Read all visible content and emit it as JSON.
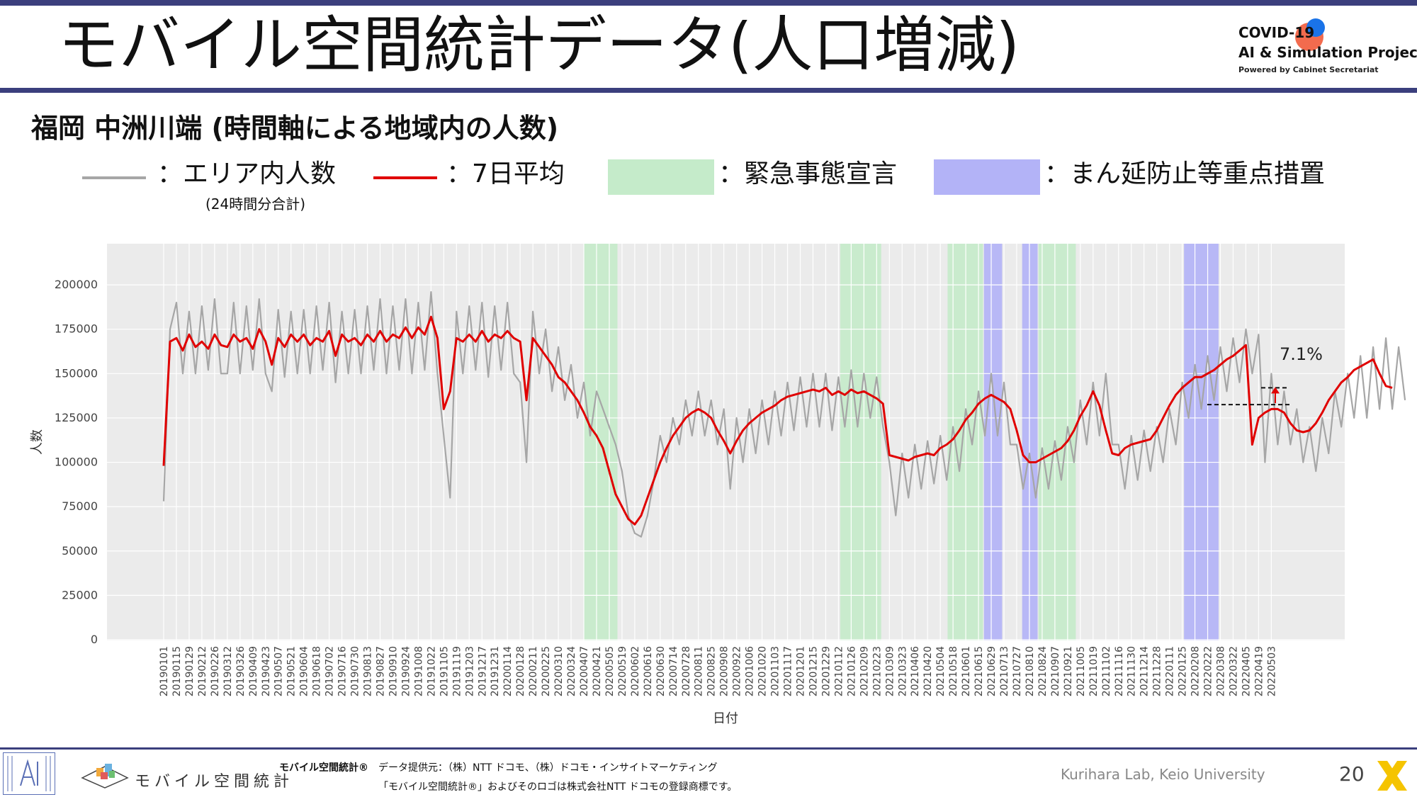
{
  "header": {
    "title": "モバイル空間統計データ(人口増減)",
    "logo_line1": "COVID-19",
    "logo_line2": "AI & Simulation Project",
    "logo_line3": "Powered by Cabinet Secretariat",
    "colors": {
      "rule": "#3b3f7d",
      "logo_red": "#f26b4e",
      "logo_blue": "#1a73e8"
    }
  },
  "subtitle": "福岡 中洲川端 (時間軸による地域内の人数)",
  "legend": {
    "area_people": "：エリア内人数",
    "area_note": "(24時間分合計)",
    "avg7": "：7日平均",
    "emergency": "：緊急事態宣言",
    "priority": "：まん延防止等重点措置",
    "colors": {
      "area": "#a6a6a6",
      "avg7": "#e00000",
      "emergency": "#c5ebca",
      "priority": "#b3b3f7"
    }
  },
  "chart_data": {
    "type": "line",
    "xlabel": "日付",
    "ylabel": "人数",
    "ylim": [
      0,
      220000
    ],
    "yticks": [
      0,
      25000,
      50000,
      75000,
      100000,
      125000,
      150000,
      175000,
      200000
    ],
    "x_tick_labels": [
      "20190101",
      "20190115",
      "20190129",
      "20190212",
      "20190226",
      "20190312",
      "20190326",
      "20190409",
      "20190423",
      "20190507",
      "20190521",
      "20190604",
      "20190618",
      "20190702",
      "20190716",
      "20190730",
      "20190813",
      "20190827",
      "20190910",
      "20190924",
      "20191008",
      "20191022",
      "20191105",
      "20191119",
      "20191203",
      "20191217",
      "20191231",
      "20200114",
      "20200128",
      "20200211",
      "20200225",
      "20200310",
      "20200324",
      "20200407",
      "20200421",
      "20200505",
      "20200519",
      "20200602",
      "20200616",
      "20200630",
      "20200714",
      "20200728",
      "20200811",
      "20200825",
      "20200908",
      "20200922",
      "20201006",
      "20201020",
      "20201103",
      "20201117",
      "20201201",
      "20201215",
      "20201229",
      "20210112",
      "20210126",
      "20210209",
      "20210223",
      "20210309",
      "20210323",
      "20210406",
      "20210420",
      "20210504",
      "20210518",
      "20210601",
      "20210615",
      "20210629",
      "20210713",
      "20210727",
      "20210810",
      "20210824",
      "20210907",
      "20210921",
      "20211005",
      "20211019",
      "20211102",
      "20211116",
      "20211130",
      "20211214",
      "20211228",
      "20220111",
      "20220125",
      "20220208",
      "20220222",
      "20220308",
      "20220322",
      "20220405",
      "20220419",
      "20220503"
    ],
    "grid": true,
    "series": [
      {
        "name": "エリア内人数",
        "color": "#a6a6a6",
        "values_every_7_days": [
          78000,
          175000,
          190000,
          150000,
          185000,
          150000,
          188000,
          152000,
          192000,
          150000,
          150000,
          190000,
          150000,
          188000,
          152000,
          192000,
          150000,
          140000,
          186000,
          148000,
          185000,
          150000,
          186000,
          150000,
          188000,
          152000,
          190000,
          145000,
          185000,
          150000,
          186000,
          150000,
          188000,
          152000,
          192000,
          150000,
          188000,
          152000,
          192000,
          150000,
          190000,
          152000,
          196000,
          150000,
          115000,
          80000,
          185000,
          150000,
          188000,
          152000,
          190000,
          148000,
          188000,
          152000,
          190000,
          150000,
          145000,
          100000,
          185000,
          150000,
          175000,
          140000,
          165000,
          135000,
          155000,
          125000,
          145000,
          115000,
          140000,
          130000,
          120000,
          110000,
          95000,
          70000,
          60000,
          58000,
          70000,
          90000,
          115000,
          100000,
          125000,
          110000,
          135000,
          115000,
          140000,
          115000,
          135000,
          110000,
          130000,
          85000,
          125000,
          100000,
          130000,
          105000,
          135000,
          110000,
          140000,
          115000,
          145000,
          118000,
          148000,
          120000,
          150000,
          120000,
          150000,
          118000,
          148000,
          120000,
          152000,
          120000,
          150000,
          125000,
          148000,
          120000,
          100000,
          70000,
          105000,
          80000,
          110000,
          85000,
          112000,
          88000,
          115000,
          90000,
          120000,
          95000,
          130000,
          110000,
          140000,
          115000,
          150000,
          115000,
          145000,
          110000,
          110000,
          85000,
          105000,
          80000,
          108000,
          85000,
          112000,
          90000,
          120000,
          100000,
          135000,
          110000,
          145000,
          115000,
          150000,
          110000,
          110000,
          85000,
          115000,
          90000,
          118000,
          95000,
          120000,
          100000,
          130000,
          110000,
          145000,
          125000,
          155000,
          130000,
          160000,
          135000,
          165000,
          140000,
          170000,
          145000,
          175000,
          150000,
          172000,
          100000,
          150000,
          110000,
          140000,
          110000,
          130000,
          100000,
          120000,
          95000,
          125000,
          105000,
          140000,
          120000,
          150000,
          125000,
          160000,
          125000,
          165000,
          130000,
          170000,
          130000,
          165000,
          135000
        ]
      },
      {
        "name": "7日平均",
        "color": "#e00000",
        "values_every_7_days": [
          98000,
          168000,
          170000,
          163000,
          172000,
          165000,
          168000,
          164000,
          172000,
          166000,
          165000,
          172000,
          168000,
          170000,
          164000,
          175000,
          168000,
          155000,
          170000,
          165000,
          172000,
          168000,
          172000,
          166000,
          170000,
          168000,
          174000,
          160000,
          172000,
          168000,
          170000,
          166000,
          172000,
          168000,
          174000,
          168000,
          172000,
          170000,
          176000,
          170000,
          176000,
          172000,
          182000,
          170000,
          130000,
          140000,
          170000,
          168000,
          172000,
          168000,
          174000,
          168000,
          172000,
          170000,
          174000,
          170000,
          168000,
          135000,
          170000,
          165000,
          160000,
          155000,
          148000,
          145000,
          140000,
          135000,
          128000,
          120000,
          115000,
          108000,
          95000,
          82000,
          75000,
          68000,
          65000,
          70000,
          80000,
          90000,
          100000,
          108000,
          115000,
          120000,
          125000,
          128000,
          130000,
          128000,
          125000,
          118000,
          112000,
          105000,
          112000,
          118000,
          122000,
          125000,
          128000,
          130000,
          132000,
          135000,
          137000,
          138000,
          139000,
          140000,
          141000,
          140000,
          142000,
          138000,
          140000,
          138000,
          141000,
          139000,
          140000,
          138000,
          136000,
          133000,
          104000,
          103000,
          102000,
          101000,
          103000,
          104000,
          105000,
          104000,
          108000,
          110000,
          113000,
          118000,
          124000,
          128000,
          133000,
          136000,
          138000,
          136000,
          134000,
          130000,
          118000,
          104000,
          100000,
          100000,
          102000,
          104000,
          106000,
          108000,
          112000,
          118000,
          126000,
          132000,
          140000,
          132000,
          118000,
          105000,
          104000,
          108000,
          110000,
          111000,
          112000,
          113000,
          118000,
          125000,
          132000,
          138000,
          142000,
          145000,
          148000,
          148000,
          150000,
          152000,
          155000,
          158000,
          160000,
          163000,
          166000,
          110000,
          125000,
          128000,
          130000,
          130000,
          128000,
          122000,
          118000,
          117000,
          118000,
          122000,
          128000,
          135000,
          140000,
          145000,
          148000,
          152000,
          154000,
          156000,
          158000,
          150000,
          143000,
          142000
        ]
      }
    ],
    "shaded_periods": [
      {
        "type": "緊急事態宣言",
        "start": "20200407",
        "end": "20200514"
      },
      {
        "type": "緊急事態宣言",
        "start": "20210114",
        "end": "20210228"
      },
      {
        "type": "緊急事態宣言",
        "start": "20210512",
        "end": "20210620"
      },
      {
        "type": "まん延防止等重点措置",
        "start": "20210621",
        "end": "20210711"
      },
      {
        "type": "まん延防止等重点措置",
        "start": "20210802",
        "end": "20210819"
      },
      {
        "type": "緊急事態宣言",
        "start": "20210820",
        "end": "20210930"
      },
      {
        "type": "まん延防止等重点措置",
        "start": "20220127",
        "end": "20220306"
      }
    ],
    "annotation": {
      "text": "7.1%",
      "upper_value": 142000,
      "lower_value": 132500
    }
  },
  "footer": {
    "mobile_logo_text": "モバイル空間統計",
    "registered_bold": "モバイル空間統計®",
    "source": "データ提供元：（株）NTT ドコモ、（株）ドコモ・インサイトマーケティング",
    "trademark": "「モバイル空間統計®」およびそのロゴは株式会社NTT ドコモの登録商標です。",
    "lab": "Kurihara Lab, Keio University",
    "page": "20"
  }
}
